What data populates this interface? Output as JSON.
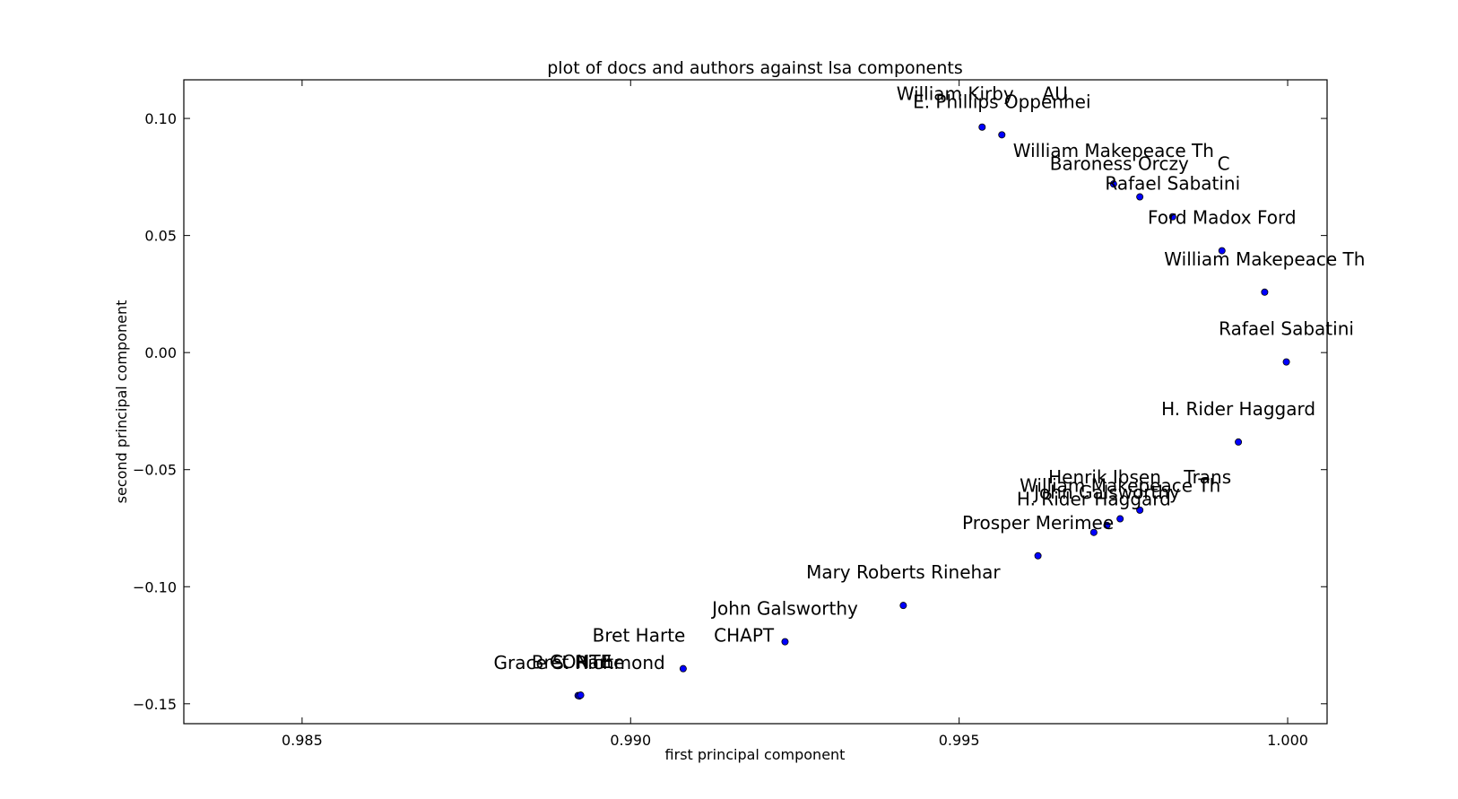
{
  "chart_data": {
    "type": "scatter",
    "title": "plot of docs and authors against lsa components",
    "xlabel": "first principal component",
    "ylabel": "second principal component",
    "xlim": [
      0.9832,
      1.0006
    ],
    "ylim": [
      -0.1585,
      0.1165
    ],
    "xticks": [
      0.985,
      0.99,
      0.995,
      1.0
    ],
    "xtick_labels": [
      "0.985",
      "0.990",
      "0.995",
      "1.000"
    ],
    "yticks": [
      -0.15,
      -0.1,
      -0.05,
      0.0,
      0.05,
      0.1
    ],
    "ytick_labels": [
      "−0.15",
      "−0.10",
      "−0.05",
      "0.00",
      "0.05",
      "0.10"
    ],
    "grid": false,
    "marker_color": "#0000ff",
    "points": [
      {
        "x": 0.99535,
        "y": 0.0963,
        "label": "William Kirby     AU"
      },
      {
        "x": 0.99565,
        "y": 0.093,
        "label": "E. Phillips Oppenhei"
      },
      {
        "x": 0.99735,
        "y": 0.072,
        "label": "William Makepeace Th"
      },
      {
        "x": 0.99775,
        "y": 0.0665,
        "label": "Baroness Orczy     C"
      },
      {
        "x": 0.99825,
        "y": 0.058,
        "label": "Rafael Sabatini"
      },
      {
        "x": 0.999,
        "y": 0.0435,
        "label": "Ford Madox Ford"
      },
      {
        "x": 0.99965,
        "y": 0.0258,
        "label": "William Makepeace Th"
      },
      {
        "x": 0.99998,
        "y": -0.004,
        "label": "Rafael Sabatini"
      },
      {
        "x": 0.99925,
        "y": -0.0382,
        "label": "H. Rider Haggard"
      },
      {
        "x": 0.99775,
        "y": -0.0673,
        "label": "Henrik Ibsen    Trans"
      },
      {
        "x": 0.99745,
        "y": -0.071,
        "label": "William Makepeace Th"
      },
      {
        "x": 0.99725,
        "y": -0.0738,
        "label": "John Galsworthy"
      },
      {
        "x": 0.99705,
        "y": -0.0768,
        "label": "H. Rider Haggard"
      },
      {
        "x": 0.9962,
        "y": -0.0868,
        "label": "Prosper Merimee"
      },
      {
        "x": 0.99415,
        "y": -0.108,
        "label": "Mary Roberts Rinehar"
      },
      {
        "x": 0.99235,
        "y": -0.1235,
        "label": "John Galsworthy"
      },
      {
        "x": 0.9908,
        "y": -0.135,
        "label": "Bret Harte     CHAPT"
      },
      {
        "x": 0.9892,
        "y": -0.1465,
        "label": "Bret Harte"
      },
      {
        "x": 0.98922,
        "y": -0.1467,
        "label": "Grace S. Richmond"
      },
      {
        "x": 0.98924,
        "y": -0.1463,
        "label": "CONTE"
      }
    ]
  }
}
